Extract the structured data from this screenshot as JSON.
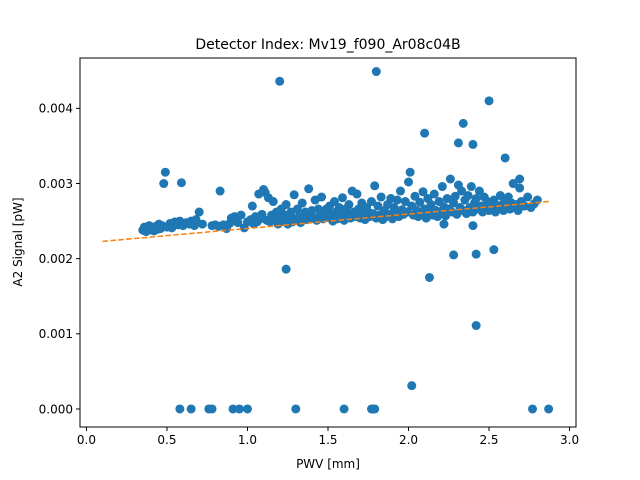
{
  "chart_data": {
    "type": "scatter",
    "title": "Detector Index: Mv19_f090_Ar08c04B",
    "xlabel": "PWV [mm]",
    "ylabel": "A2 Signal [pW]",
    "xlim": [
      -0.04,
      3.04
    ],
    "ylim": [
      -0.00024,
      0.00467
    ],
    "xticks": [
      0.0,
      0.5,
      1.0,
      1.5,
      2.0,
      2.5,
      3.0
    ],
    "xtick_labels": [
      "0.0",
      "0.5",
      "1.0",
      "1.5",
      "2.0",
      "2.5",
      "3.0"
    ],
    "yticks": [
      0.0,
      0.001,
      0.002,
      0.003,
      0.004
    ],
    "ytick_labels": [
      "0.000",
      "0.001",
      "0.002",
      "0.003",
      "0.004"
    ],
    "marker_color": "#1f77b4",
    "fit_color": "#ff7f0e",
    "fit_line": {
      "x": [
        0.1,
        2.87
      ],
      "y": [
        0.00223,
        0.00276
      ],
      "style": "dashed"
    },
    "series": [
      {
        "name": "measurements",
        "points": [
          [
            0.35,
            0.00238
          ],
          [
            0.36,
            0.00242
          ],
          [
            0.37,
            0.00236
          ],
          [
            0.38,
            0.0024
          ],
          [
            0.39,
            0.00244
          ],
          [
            0.4,
            0.00238
          ],
          [
            0.41,
            0.00241
          ],
          [
            0.42,
            0.00237
          ],
          [
            0.43,
            0.00243
          ],
          [
            0.44,
            0.00239
          ],
          [
            0.45,
            0.00246
          ],
          [
            0.46,
            0.0024
          ],
          [
            0.47,
            0.00244
          ],
          [
            0.48,
            0.003
          ],
          [
            0.49,
            0.00315
          ],
          [
            0.5,
            0.00242
          ],
          [
            0.52,
            0.00247
          ],
          [
            0.53,
            0.00241
          ],
          [
            0.55,
            0.00249
          ],
          [
            0.57,
            0.00245
          ],
          [
            0.58,
            0.0025
          ],
          [
            0.59,
            0.00301
          ],
          [
            0.6,
            0.00244
          ],
          [
            0.62,
            0.00248
          ],
          [
            0.64,
            0.00246
          ],
          [
            0.65,
            0.0025
          ],
          [
            0.67,
            0.00244
          ],
          [
            0.68,
            0.00252
          ],
          [
            0.7,
            0.00262
          ],
          [
            0.72,
            0.00246
          ],
          [
            0.78,
            0.00244
          ],
          [
            0.8,
            0.00245
          ],
          [
            0.82,
            0.00243
          ],
          [
            0.83,
            0.0029
          ],
          [
            0.85,
            0.00245
          ],
          [
            0.87,
            0.0024
          ],
          [
            0.89,
            0.00247
          ],
          [
            0.9,
            0.00254
          ],
          [
            0.92,
            0.00256
          ],
          [
            0.94,
            0.00248
          ],
          [
            0.96,
            0.00258
          ],
          [
            0.98,
            0.00241
          ],
          [
            1.0,
            0.00249
          ],
          [
            1.02,
            0.00252
          ],
          [
            1.03,
            0.0027
          ],
          [
            1.04,
            0.00246
          ],
          [
            1.05,
            0.00256
          ],
          [
            1.06,
            0.00249
          ],
          [
            1.07,
            0.00286
          ],
          [
            1.08,
            0.00253
          ],
          [
            1.09,
            0.00259
          ],
          [
            1.1,
            0.00292
          ],
          [
            1.11,
            0.00288
          ],
          [
            1.12,
            0.00251
          ],
          [
            1.13,
            0.00281
          ],
          [
            1.14,
            0.00249
          ],
          [
            1.15,
            0.00258
          ],
          [
            1.16,
            0.00276
          ],
          [
            1.17,
            0.00252
          ],
          [
            1.18,
            0.00262
          ],
          [
            1.19,
            0.00246
          ],
          [
            1.2,
            0.00254
          ],
          [
            1.21,
            0.00266
          ],
          [
            1.22,
            0.0025
          ],
          [
            1.23,
            0.00258
          ],
          [
            1.24,
            0.00272
          ],
          [
            1.25,
            0.00246
          ],
          [
            1.26,
            0.00255
          ],
          [
            1.27,
            0.00262
          ],
          [
            1.28,
            0.00249
          ],
          [
            1.29,
            0.00285
          ],
          [
            1.3,
            0.00253
          ],
          [
            1.31,
            0.00266
          ],
          [
            1.32,
            0.00256
          ],
          [
            1.33,
            0.00248
          ],
          [
            1.34,
            0.00274
          ],
          [
            1.35,
            0.00257
          ],
          [
            1.36,
            0.00262
          ],
          [
            1.37,
            0.00252
          ],
          [
            1.38,
            0.00293
          ],
          [
            1.39,
            0.00259
          ],
          [
            1.4,
            0.00264
          ],
          [
            1.41,
            0.00254
          ],
          [
            1.42,
            0.00278
          ],
          [
            1.43,
            0.00251
          ],
          [
            1.44,
            0.00266
          ],
          [
            1.45,
            0.00258
          ],
          [
            1.46,
            0.00282
          ],
          [
            1.47,
            0.00253
          ],
          [
            1.48,
            0.00262
          ],
          [
            1.49,
            0.00266
          ],
          [
            1.5,
            0.00255
          ],
          [
            1.51,
            0.0027
          ],
          [
            1.52,
            0.00259
          ],
          [
            1.53,
            0.0025
          ],
          [
            1.54,
            0.00276
          ],
          [
            1.55,
            0.00262
          ],
          [
            1.56,
            0.00253
          ],
          [
            1.57,
            0.00268
          ],
          [
            1.58,
            0.00257
          ],
          [
            1.59,
            0.00281
          ],
          [
            1.6,
            0.00251
          ],
          [
            1.61,
            0.00266
          ],
          [
            1.62,
            0.00259
          ],
          [
            1.63,
            0.00272
          ],
          [
            1.64,
            0.00254
          ],
          [
            1.65,
            0.0029
          ],
          [
            1.66,
            0.00262
          ],
          [
            1.67,
            0.00256
          ],
          [
            1.68,
            0.00286
          ],
          [
            1.69,
            0.00266
          ],
          [
            1.7,
            0.00254
          ],
          [
            1.71,
            0.00274
          ],
          [
            1.72,
            0.00259
          ],
          [
            1.73,
            0.00252
          ],
          [
            1.74,
            0.00268
          ],
          [
            1.75,
            0.00262
          ],
          [
            1.76,
            0.00256
          ],
          [
            1.77,
            0.00276
          ],
          [
            1.78,
            0.0026
          ],
          [
            1.79,
            0.00297
          ],
          [
            1.8,
            0.00254
          ],
          [
            1.81,
            0.0027
          ],
          [
            1.82,
            0.00258
          ],
          [
            1.83,
            0.00282
          ],
          [
            1.84,
            0.00252
          ],
          [
            1.85,
            0.00264
          ],
          [
            1.86,
            0.00256
          ],
          [
            1.87,
            0.00272
          ],
          [
            1.88,
            0.00259
          ],
          [
            1.89,
            0.0028
          ],
          [
            1.9,
            0.00253
          ],
          [
            1.91,
            0.00268
          ],
          [
            1.92,
            0.00262
          ],
          [
            1.93,
            0.00278
          ],
          [
            1.94,
            0.00256
          ],
          [
            1.95,
            0.0029
          ],
          [
            1.96,
            0.00265
          ],
          [
            1.97,
            0.00259
          ],
          [
            1.98,
            0.00276
          ],
          [
            1.99,
            0.00262
          ],
          [
            2.0,
            0.00302
          ],
          [
            2.01,
            0.00315
          ],
          [
            2.02,
            0.0027
          ],
          [
            2.03,
            0.00258
          ],
          [
            2.04,
            0.00283
          ],
          [
            2.05,
            0.00264
          ],
          [
            2.06,
            0.00256
          ],
          [
            2.07,
            0.00275
          ],
          [
            2.08,
            0.0026
          ],
          [
            2.09,
            0.00289
          ],
          [
            2.1,
            0.00266
          ],
          [
            2.11,
            0.00254
          ],
          [
            2.12,
            0.0028
          ],
          [
            2.13,
            0.00262
          ],
          [
            2.14,
            0.00272
          ],
          [
            2.15,
            0.00258
          ],
          [
            2.16,
            0.00286
          ],
          [
            2.17,
            0.00264
          ],
          [
            2.18,
            0.00256
          ],
          [
            2.19,
            0.00276
          ],
          [
            2.2,
            0.00262
          ],
          [
            2.21,
            0.00296
          ],
          [
            2.22,
            0.00269
          ],
          [
            2.23,
            0.00257
          ],
          [
            2.24,
            0.0028
          ],
          [
            2.25,
            0.00266
          ],
          [
            2.26,
            0.00306
          ],
          [
            2.27,
            0.00262
          ],
          [
            2.28,
            0.00274
          ],
          [
            2.29,
            0.00283
          ],
          [
            2.3,
            0.00259
          ],
          [
            2.31,
            0.00298
          ],
          [
            2.32,
            0.00268
          ],
          [
            2.33,
            0.0029
          ],
          [
            2.34,
            0.00264
          ],
          [
            2.35,
            0.00278
          ],
          [
            2.36,
            0.0026
          ],
          [
            2.37,
            0.00284
          ],
          [
            2.38,
            0.00268
          ],
          [
            2.39,
            0.00296
          ],
          [
            2.4,
            0.00262
          ],
          [
            2.41,
            0.00274
          ],
          [
            2.42,
            0.0028
          ],
          [
            2.43,
            0.00266
          ],
          [
            2.44,
            0.0029
          ],
          [
            2.45,
            0.0027
          ],
          [
            2.46,
            0.00262
          ],
          [
            2.47,
            0.00282
          ],
          [
            2.48,
            0.00268
          ],
          [
            2.49,
            0.00276
          ],
          [
            2.5,
            0.00264
          ],
          [
            2.51,
            0.00272
          ],
          [
            2.52,
            0.00268
          ],
          [
            2.53,
            0.00278
          ],
          [
            2.54,
            0.00262
          ],
          [
            2.55,
            0.0027
          ],
          [
            2.56,
            0.00266
          ],
          [
            2.57,
            0.00284
          ],
          [
            2.58,
            0.00272
          ],
          [
            2.59,
            0.00264
          ],
          [
            2.6,
            0.00276
          ],
          [
            2.61,
            0.00268
          ],
          [
            2.62,
            0.00282
          ],
          [
            2.63,
            0.00266
          ],
          [
            2.64,
            0.00274
          ],
          [
            2.65,
            0.003
          ],
          [
            2.66,
            0.00268
          ],
          [
            2.67,
            0.00272
          ],
          [
            2.68,
            0.00264
          ],
          [
            2.69,
            0.00294
          ],
          [
            2.7,
            0.00276
          ],
          [
            2.72,
            0.0027
          ],
          [
            2.74,
            0.00282
          ],
          [
            2.76,
            0.00268
          ],
          [
            2.78,
            0.00273
          ],
          [
            2.8,
            0.00278
          ],
          [
            1.2,
            0.00436
          ],
          [
            1.8,
            0.00449
          ],
          [
            1.24,
            0.00186
          ],
          [
            2.1,
            0.00367
          ],
          [
            2.34,
            0.0038
          ],
          [
            2.31,
            0.00354
          ],
          [
            2.4,
            0.00352
          ],
          [
            2.5,
            0.0041
          ],
          [
            2.6,
            0.00334
          ],
          [
            2.28,
            0.00205
          ],
          [
            2.42,
            0.00206
          ],
          [
            2.53,
            0.00212
          ],
          [
            2.13,
            0.00175
          ],
          [
            2.42,
            0.00111
          ],
          [
            2.02,
            0.00031
          ],
          [
            2.69,
            0.00306
          ],
          [
            2.22,
            0.00246
          ],
          [
            2.4,
            0.00244
          ],
          [
            0.58,
            0.0
          ],
          [
            0.65,
            0.0
          ],
          [
            0.76,
            0.0
          ],
          [
            0.78,
            0.0
          ],
          [
            0.91,
            0.0
          ],
          [
            0.95,
            0.0
          ],
          [
            1.0,
            0.0
          ],
          [
            1.3,
            0.0
          ],
          [
            1.6,
            0.0
          ],
          [
            1.77,
            0.0
          ],
          [
            1.78,
            0.0
          ],
          [
            1.79,
            0.0
          ],
          [
            2.77,
            0.0
          ],
          [
            2.87,
            0.0
          ]
        ]
      }
    ]
  }
}
